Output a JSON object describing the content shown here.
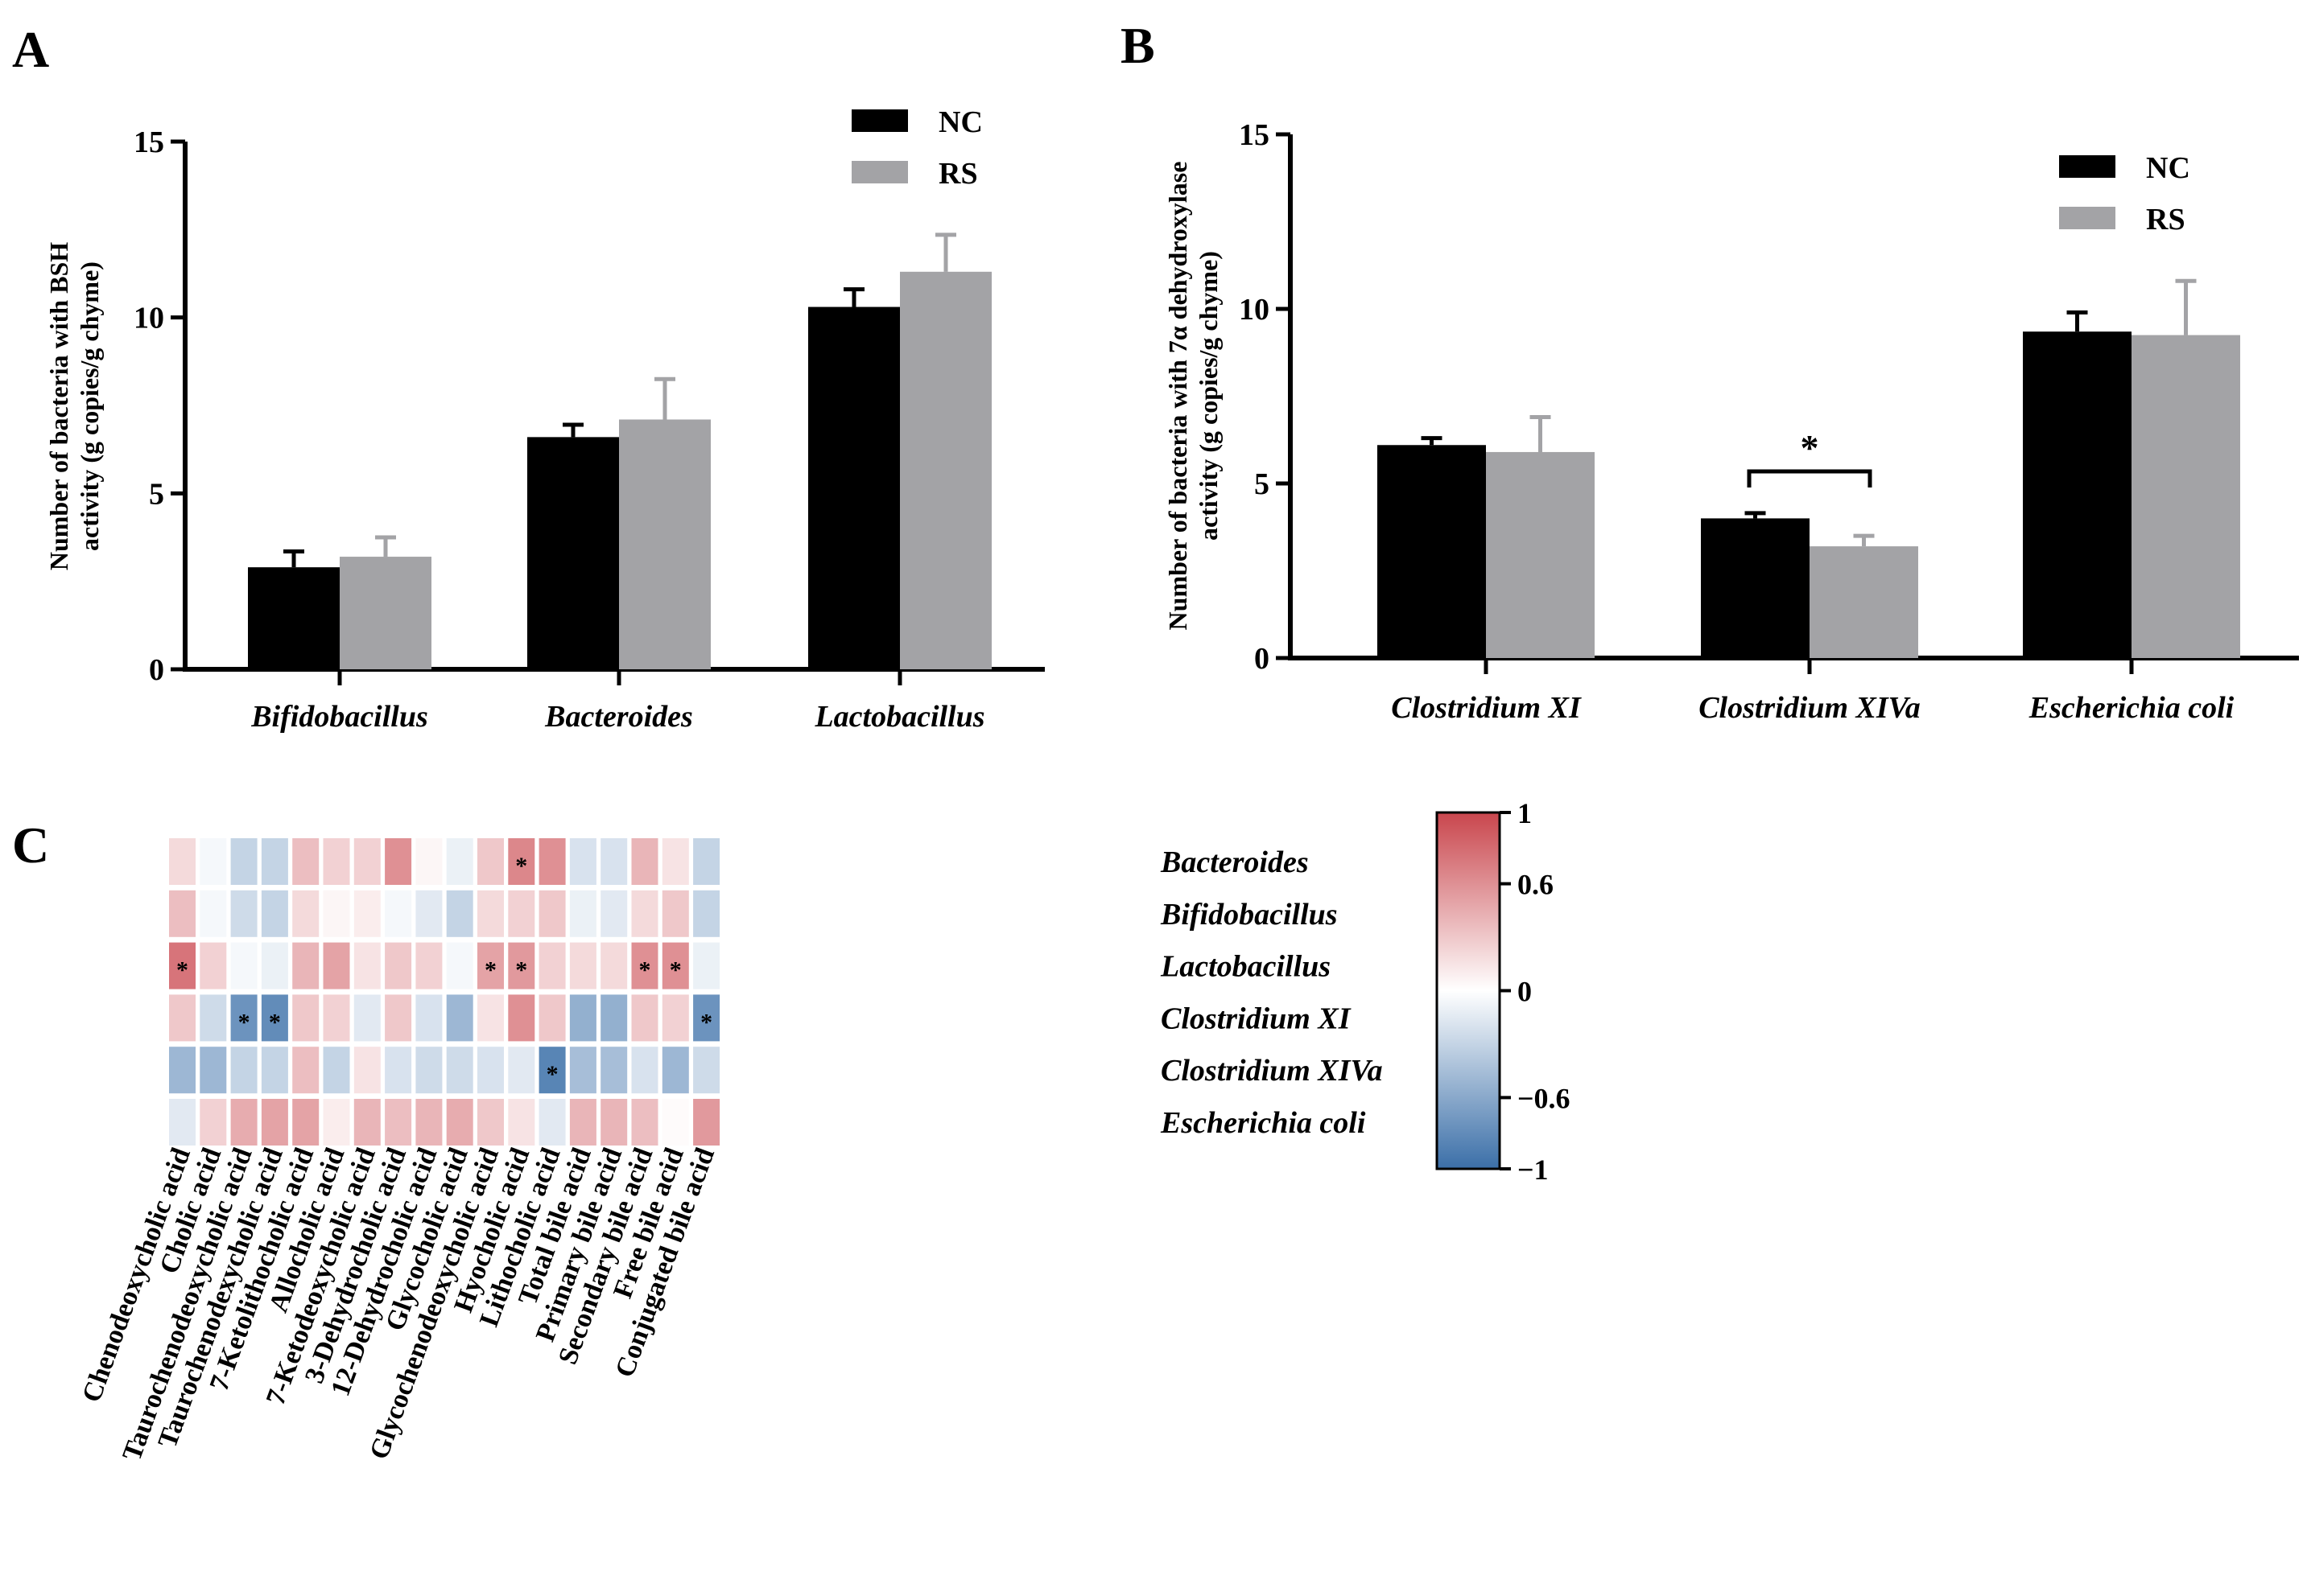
{
  "chart_data": [
    {
      "panel": "A",
      "type": "bar",
      "ylabel": [
        "Number of bacteria with BSH",
        "activity (g copies/g chyme)"
      ],
      "ylim": [
        0,
        15
      ],
      "yticks": [
        0,
        5,
        10,
        15
      ],
      "categories": [
        "Bifidobacillus",
        "Bacteroides",
        "Lactobacillus"
      ],
      "series": [
        {
          "name": "NC",
          "color": "#000000",
          "values": [
            2.9,
            6.6,
            10.3
          ],
          "errors": [
            0.45,
            0.35,
            0.5
          ]
        },
        {
          "name": "RS",
          "color": "#a3a3a6",
          "values": [
            3.2,
            7.1,
            11.3
          ],
          "errors": [
            0.55,
            1.15,
            1.05
          ]
        }
      ],
      "legend": [
        "NC",
        "RS"
      ]
    },
    {
      "panel": "B",
      "type": "bar",
      "ylabel": [
        "Number of bacteria with 7α dehydroxylase",
        "activity (g copies/g chyme)"
      ],
      "ylim": [
        0,
        15
      ],
      "yticks": [
        0,
        5,
        10,
        15
      ],
      "categories": [
        "Clostridium  XI",
        "Clostridium  XIVa",
        "Escherichia coli"
      ],
      "series": [
        {
          "name": "NC",
          "color": "#000000",
          "values": [
            6.1,
            4.0,
            9.35
          ],
          "errors": [
            0.2,
            0.15,
            0.55
          ]
        },
        {
          "name": "RS",
          "color": "#a3a3a6",
          "values": [
            5.9,
            3.2,
            9.25
          ],
          "errors": [
            1.0,
            0.3,
            1.55
          ]
        }
      ],
      "legend": [
        "NC",
        "RS"
      ],
      "significance": {
        "category": "Clostridium  XIVa",
        "label": "*"
      }
    },
    {
      "panel": "C",
      "type": "heatmap",
      "rows": [
        "Bacteroides",
        "Bifidobacillus",
        "Lactobacillus",
        "Clostridium XI",
        "Clostridium XIVa",
        "Escherichia coli"
      ],
      "columns": [
        "Chenodeoxycholic acid",
        "Cholic acid",
        "Taurochenodeoxycholic acid",
        "Taurochenodexycholic acid",
        "7-Ketolithocholic acid",
        "Allocholic acid",
        "7-Ketodeoxycholic acid",
        "3-Dehydrocholic acid",
        "12-Dehydrocholic acid",
        "Glycocholic acid",
        "Glycochenodeoxycholic acid",
        "Hyocholic acid",
        "Lithocholic acid",
        "Total bile acid",
        "Primary bile acid",
        "Secondary bile acid",
        "Free bile acid",
        "Conjugated bile acid"
      ],
      "values": [
        [
          0.2,
          -0.05,
          -0.3,
          -0.3,
          0.35,
          0.25,
          0.25,
          0.6,
          0.05,
          -0.1,
          0.3,
          0.65,
          0.6,
          -0.2,
          -0.2,
          0.4,
          0.15,
          -0.3
        ],
        [
          0.35,
          -0.05,
          -0.25,
          -0.3,
          0.2,
          0.05,
          0.1,
          -0.05,
          -0.15,
          -0.3,
          0.2,
          0.25,
          0.3,
          -0.1,
          -0.15,
          0.2,
          0.3,
          -0.3
        ],
        [
          0.75,
          0.25,
          -0.05,
          -0.1,
          0.4,
          0.5,
          0.15,
          0.3,
          0.25,
          -0.05,
          0.5,
          0.55,
          0.25,
          0.2,
          0.2,
          0.6,
          0.6,
          -0.1
        ],
        [
          0.3,
          -0.25,
          -0.75,
          -0.8,
          0.3,
          0.25,
          -0.15,
          0.3,
          -0.2,
          -0.5,
          0.15,
          0.6,
          0.3,
          -0.55,
          -0.55,
          0.3,
          0.25,
          -0.75
        ],
        [
          -0.5,
          -0.5,
          -0.3,
          -0.3,
          0.35,
          -0.3,
          0.15,
          -0.2,
          -0.25,
          -0.25,
          -0.2,
          -0.15,
          -0.85,
          -0.45,
          -0.45,
          -0.2,
          -0.5,
          -0.25
        ],
        [
          -0.15,
          0.25,
          0.45,
          0.5,
          0.5,
          0.1,
          0.4,
          0.35,
          0.4,
          0.45,
          0.3,
          0.15,
          -0.15,
          0.4,
          0.4,
          0.35,
          0.02,
          0.55
        ]
      ],
      "significant": [
        [
          0,
          11
        ],
        [
          2,
          0
        ],
        [
          2,
          10
        ],
        [
          2,
          11
        ],
        [
          2,
          15
        ],
        [
          2,
          16
        ],
        [
          3,
          2
        ],
        [
          3,
          3
        ],
        [
          3,
          17
        ],
        [
          4,
          12
        ]
      ],
      "colorbar": {
        "min": -1,
        "max": 1,
        "ticks": [
          "1",
          "0.6",
          "0",
          "−0.6",
          "−1"
        ],
        "low_color": "#3b6fa8",
        "mid_color": "#ffffff",
        "high_color": "#c9464d"
      }
    }
  ],
  "labels": {
    "panel_a": "A",
    "panel_b": "B",
    "panel_c": "C",
    "star": "*"
  }
}
